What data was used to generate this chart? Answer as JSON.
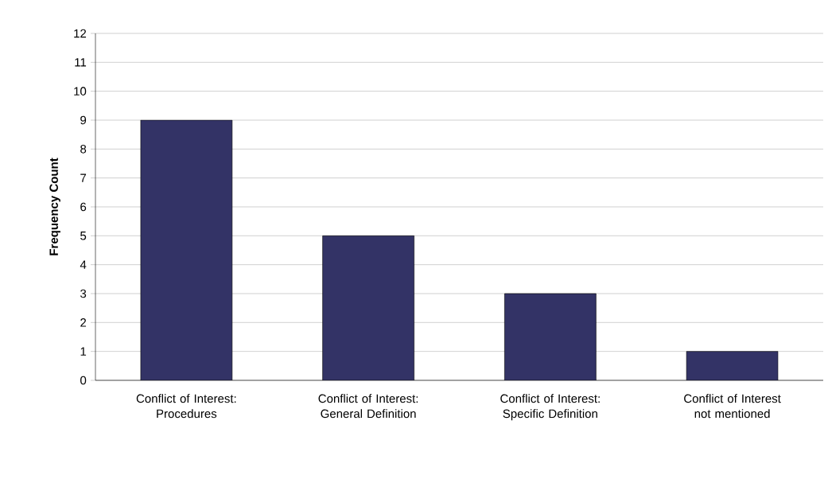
{
  "chart_data": {
    "type": "bar",
    "ylabel": "Frequency Count",
    "categories": [
      "Conflict of Interest: Procedures",
      "Conflict of Interest: General Definition",
      "Conflict of Interest: Specific Definition",
      "Conflict of Interest not mentioned"
    ],
    "values": [
      9,
      5,
      3,
      1
    ],
    "color": "#333366",
    "ylim": [
      0,
      12
    ],
    "yticks": [
      0,
      1,
      2,
      3,
      4,
      5,
      6,
      7,
      8,
      9,
      10,
      11,
      12
    ],
    "grid": "y"
  }
}
